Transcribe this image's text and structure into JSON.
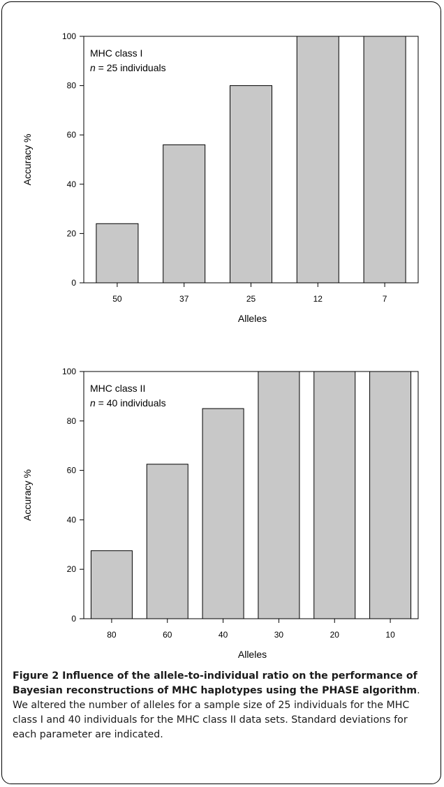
{
  "chart_data": [
    {
      "type": "bar",
      "categories": [
        "50",
        "37",
        "25",
        "12",
        "7"
      ],
      "values": [
        24,
        56,
        80,
        100,
        100
      ],
      "ylim": [
        0,
        100
      ],
      "yticks": [
        0,
        20,
        40,
        60,
        80,
        100
      ],
      "xlabel": "Alleles",
      "ylabel": "Accuracy %",
      "annotation_line1": "MHC class I",
      "annotation_n": "n",
      "annotation_line2_rest": " = 25 individuals",
      "bar_color": "#c8c8c8",
      "grid": false
    },
    {
      "type": "bar",
      "categories": [
        "80",
        "60",
        "40",
        "30",
        "20",
        "10"
      ],
      "values": [
        27.5,
        62.5,
        85,
        100,
        100,
        100
      ],
      "ylim": [
        0,
        100
      ],
      "yticks": [
        0,
        20,
        40,
        60,
        80,
        100
      ],
      "xlabel": "Alleles",
      "ylabel": "Accuracy %",
      "annotation_line1": "MHC class II",
      "annotation_n": "n",
      "annotation_line2_rest": " = 40 individuals",
      "bar_color": "#c8c8c8",
      "grid": false
    }
  ],
  "caption": {
    "bold": "Figure 2 Influence of the allele-to-individual ratio on the performance of Bayesian reconstructions of MHC haplotypes using the PHASE algorithm",
    "text": ". We altered the number of alleles for a sample size of 25 individuals for the MHC class I and 40 individuals for the MHC class II data sets. Standard deviations for each parameter are indicated."
  }
}
